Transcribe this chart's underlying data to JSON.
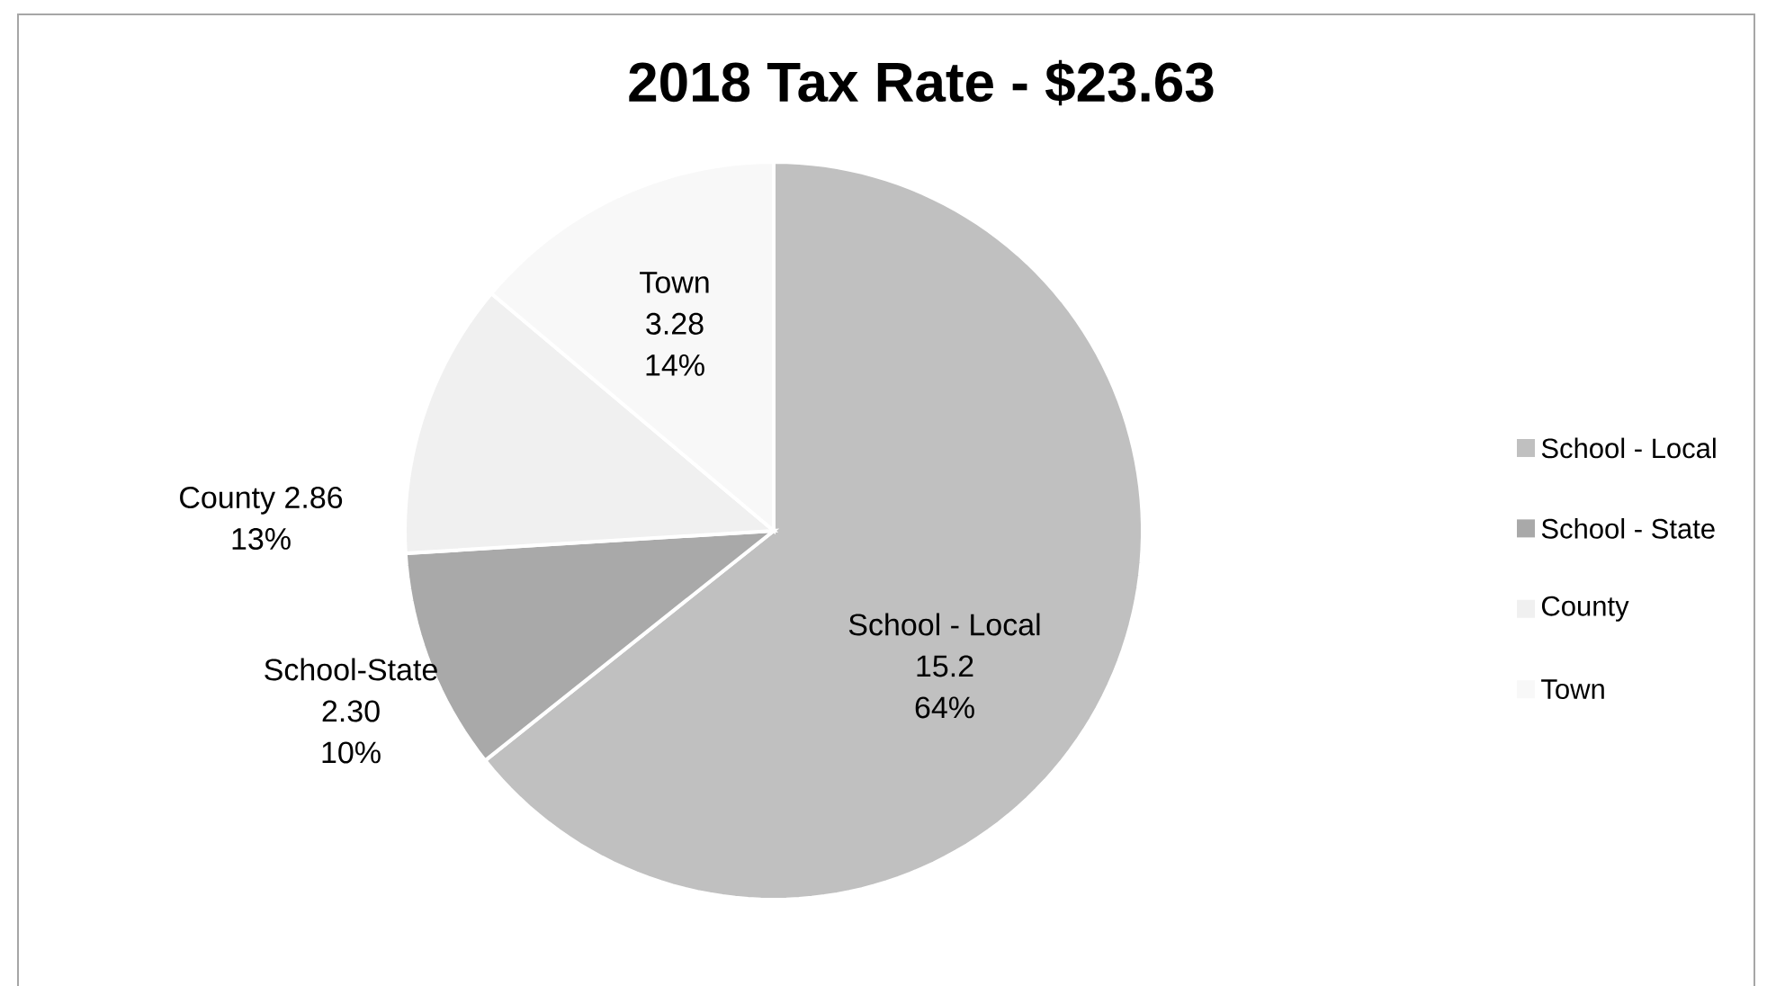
{
  "chart_data": {
    "type": "pie",
    "title": "2018 Tax Rate - $23.63",
    "categories": [
      "School - Local",
      "School - State",
      "County",
      "Town"
    ],
    "values": [
      15.2,
      2.3,
      2.86,
      3.28
    ],
    "colors": [
      "#c0c0c0",
      "#a9a9a9",
      "#f0f0f0",
      "#f8f8f8"
    ],
    "value_labels": [
      "School - Local\n15.2\n64%",
      "School-State\n2.30\n10%",
      "County 2.86\n13%",
      "Town\n3.28\n14%"
    ],
    "legend": "right"
  }
}
